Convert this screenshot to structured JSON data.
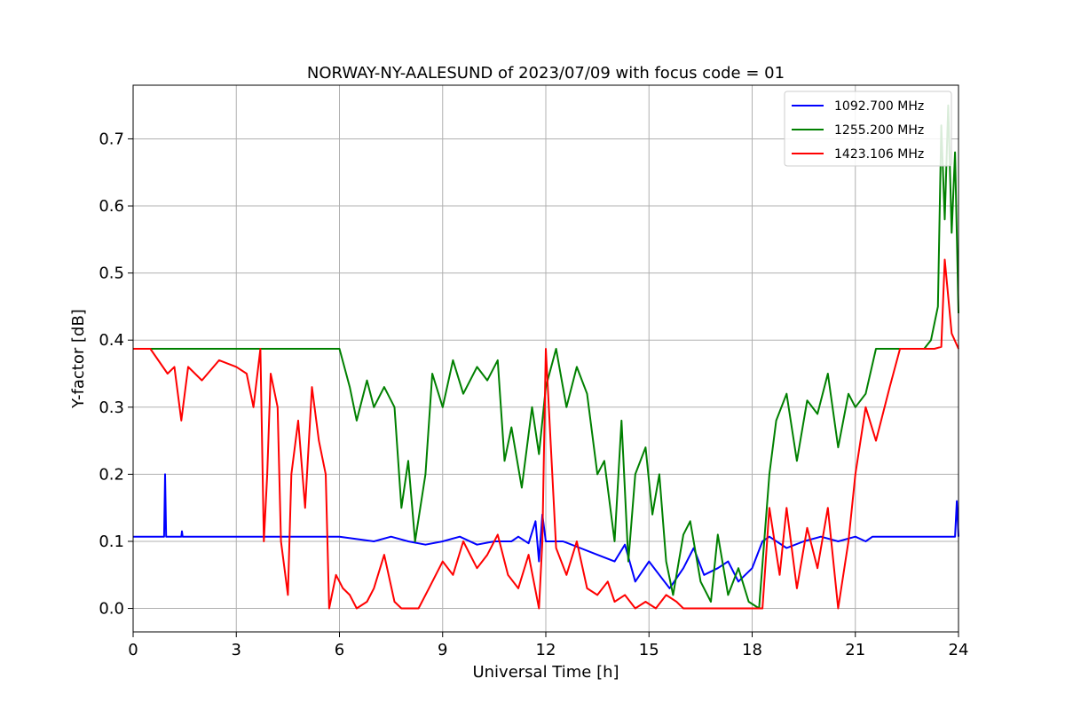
{
  "chart_data": {
    "type": "line",
    "title": "NORWAY-NY-AALESUND of 2023/07/09 with focus code = 01",
    "xlabel": "Universal Time [h]",
    "ylabel": "Y-factor [dB]",
    "xlim": [
      0,
      24
    ],
    "ylim": [
      -0.035,
      0.78
    ],
    "xticks": [
      0,
      3,
      6,
      9,
      12,
      15,
      18,
      21,
      24
    ],
    "xtick_labels": [
      "0",
      "3",
      "6",
      "9",
      "12",
      "15",
      "18",
      "21",
      "24"
    ],
    "yticks": [
      0.0,
      0.1,
      0.2,
      0.3,
      0.4,
      0.5,
      0.6,
      0.7
    ],
    "ytick_labels": [
      "0.0",
      "0.1",
      "0.2",
      "0.3",
      "0.4",
      "0.5",
      "0.6",
      "0.7"
    ],
    "grid": true,
    "legend_position": "top-right",
    "series": [
      {
        "name": "1092.700 MHz",
        "color": "#0000ff",
        "x": [
          0,
          0.9,
          0.93,
          0.96,
          1.0,
          1.4,
          1.42,
          1.44,
          1.5,
          3.0,
          6.0,
          7.0,
          7.5,
          8.0,
          8.5,
          9.0,
          9.5,
          10.0,
          10.5,
          11.0,
          11.2,
          11.5,
          11.7,
          11.8,
          11.9,
          12.0,
          12.5,
          13.0,
          13.5,
          14.0,
          14.3,
          14.6,
          15.0,
          15.3,
          15.6,
          16.0,
          16.3,
          16.6,
          17.0,
          17.3,
          17.6,
          18.0,
          18.3,
          18.5,
          19.0,
          19.5,
          20.0,
          20.5,
          21.0,
          21.3,
          21.5,
          22.0,
          22.5,
          23.0,
          23.5,
          23.9,
          23.95,
          24.0
        ],
        "y": [
          0.107,
          0.107,
          0.2,
          0.107,
          0.107,
          0.107,
          0.115,
          0.107,
          0.107,
          0.107,
          0.107,
          0.1,
          0.107,
          0.1,
          0.095,
          0.1,
          0.107,
          0.095,
          0.1,
          0.1,
          0.107,
          0.097,
          0.13,
          0.07,
          0.14,
          0.1,
          0.1,
          0.09,
          0.08,
          0.07,
          0.095,
          0.04,
          0.07,
          0.05,
          0.03,
          0.06,
          0.09,
          0.05,
          0.06,
          0.07,
          0.04,
          0.06,
          0.1,
          0.107,
          0.09,
          0.1,
          0.107,
          0.1,
          0.107,
          0.1,
          0.107,
          0.107,
          0.107,
          0.107,
          0.107,
          0.107,
          0.16,
          0.107
        ]
      },
      {
        "name": "1255.200 MHz",
        "color": "#008000",
        "x": [
          0,
          1.0,
          2.0,
          3.0,
          3.8,
          4.0,
          5.0,
          5.5,
          6.0,
          6.3,
          6.5,
          6.8,
          7.0,
          7.3,
          7.6,
          7.8,
          8.0,
          8.2,
          8.5,
          8.7,
          9.0,
          9.3,
          9.6,
          10.0,
          10.3,
          10.6,
          10.8,
          11.0,
          11.3,
          11.6,
          11.8,
          12.0,
          12.3,
          12.6,
          12.9,
          13.2,
          13.5,
          13.7,
          14.0,
          14.2,
          14.4,
          14.6,
          14.9,
          15.1,
          15.3,
          15.5,
          15.7,
          16.0,
          16.2,
          16.5,
          16.8,
          17.0,
          17.3,
          17.6,
          17.9,
          18.2,
          18.5,
          18.7,
          19.0,
          19.3,
          19.6,
          19.9,
          20.2,
          20.5,
          20.8,
          21.0,
          21.3,
          21.6,
          22.0,
          22.3,
          22.6,
          23.0,
          23.2,
          23.4,
          23.5,
          23.6,
          23.7,
          23.8,
          23.9,
          24.0
        ],
        "y": [
          0.387,
          0.387,
          0.387,
          0.387,
          0.387,
          0.387,
          0.387,
          0.387,
          0.387,
          0.33,
          0.28,
          0.34,
          0.3,
          0.33,
          0.3,
          0.15,
          0.22,
          0.1,
          0.2,
          0.35,
          0.3,
          0.37,
          0.32,
          0.36,
          0.34,
          0.37,
          0.22,
          0.27,
          0.18,
          0.3,
          0.23,
          0.33,
          0.387,
          0.3,
          0.36,
          0.32,
          0.2,
          0.22,
          0.1,
          0.28,
          0.07,
          0.2,
          0.24,
          0.14,
          0.2,
          0.07,
          0.02,
          0.11,
          0.13,
          0.04,
          0.01,
          0.11,
          0.02,
          0.06,
          0.01,
          0.0,
          0.2,
          0.28,
          0.32,
          0.22,
          0.31,
          0.29,
          0.35,
          0.24,
          0.32,
          0.3,
          0.32,
          0.387,
          0.387,
          0.387,
          0.387,
          0.387,
          0.4,
          0.45,
          0.72,
          0.58,
          0.75,
          0.56,
          0.68,
          0.44
        ]
      },
      {
        "name": "1423.106 MHz",
        "color": "#ff0000",
        "x": [
          0,
          0.5,
          1.0,
          1.2,
          1.4,
          1.6,
          2.0,
          2.5,
          3.0,
          3.3,
          3.5,
          3.7,
          3.8,
          3.9,
          4.0,
          4.2,
          4.3,
          4.5,
          4.6,
          4.8,
          5.0,
          5.2,
          5.4,
          5.6,
          5.7,
          5.9,
          6.1,
          6.3,
          6.5,
          6.8,
          7.0,
          7.3,
          7.6,
          7.8,
          8.0,
          8.3,
          8.6,
          9.0,
          9.3,
          9.6,
          10.0,
          10.3,
          10.6,
          10.9,
          11.2,
          11.5,
          11.8,
          11.9,
          12.0,
          12.3,
          12.6,
          12.9,
          13.2,
          13.5,
          13.8,
          14.0,
          14.3,
          14.6,
          14.9,
          15.2,
          15.5,
          15.8,
          16.0,
          16.3,
          16.6,
          17.0,
          17.5,
          18.0,
          18.3,
          18.5,
          18.8,
          19.0,
          19.3,
          19.6,
          19.9,
          20.2,
          20.5,
          20.8,
          21.0,
          21.3,
          21.6,
          22.0,
          22.3,
          22.6,
          23.0,
          23.3,
          23.5,
          23.6,
          23.8,
          24.0
        ],
        "y": [
          0.387,
          0.387,
          0.35,
          0.36,
          0.28,
          0.36,
          0.34,
          0.37,
          0.36,
          0.35,
          0.3,
          0.387,
          0.1,
          0.2,
          0.35,
          0.3,
          0.1,
          0.02,
          0.2,
          0.28,
          0.15,
          0.33,
          0.25,
          0.2,
          0.0,
          0.05,
          0.03,
          0.02,
          0.0,
          0.01,
          0.03,
          0.08,
          0.01,
          0.0,
          0.0,
          0.0,
          0.03,
          0.07,
          0.05,
          0.1,
          0.06,
          0.08,
          0.11,
          0.05,
          0.03,
          0.08,
          0.0,
          0.1,
          0.387,
          0.09,
          0.05,
          0.1,
          0.03,
          0.02,
          0.04,
          0.01,
          0.02,
          0.0,
          0.01,
          0.0,
          0.02,
          0.01,
          0.0,
          0.0,
          0.0,
          0.0,
          0.0,
          0.0,
          0.0,
          0.15,
          0.05,
          0.15,
          0.03,
          0.12,
          0.06,
          0.15,
          0.0,
          0.1,
          0.2,
          0.3,
          0.25,
          0.33,
          0.387,
          0.387,
          0.387,
          0.387,
          0.39,
          0.52,
          0.41,
          0.387
        ]
      }
    ]
  }
}
